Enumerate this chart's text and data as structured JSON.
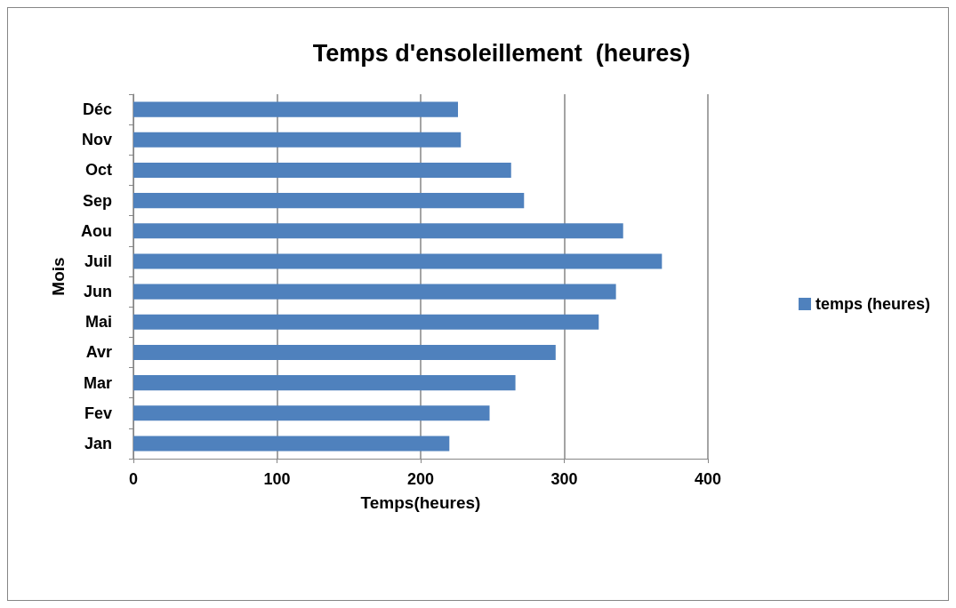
{
  "chart_data": {
    "type": "bar",
    "orientation": "horizontal",
    "title": "Temps d'ensoleillement  (heures)",
    "xlabel": "Temps(heures)",
    "ylabel": "Mois",
    "categories": [
      "Déc",
      "Nov",
      "Oct",
      "Sep",
      "Aou",
      "Juil",
      "Jun",
      "Mai",
      "Avr",
      "Mar",
      "Fev",
      "Jan"
    ],
    "series": [
      {
        "name": "temps (heures)",
        "color": "#4f81bd",
        "values": [
          226,
          228,
          263,
          272,
          341,
          368,
          336,
          324,
          294,
          266,
          248,
          220
        ]
      }
    ],
    "xlim": [
      0,
      400
    ],
    "xticks": [
      0,
      100,
      200,
      300,
      400
    ],
    "grid": "x",
    "legend": "right"
  }
}
